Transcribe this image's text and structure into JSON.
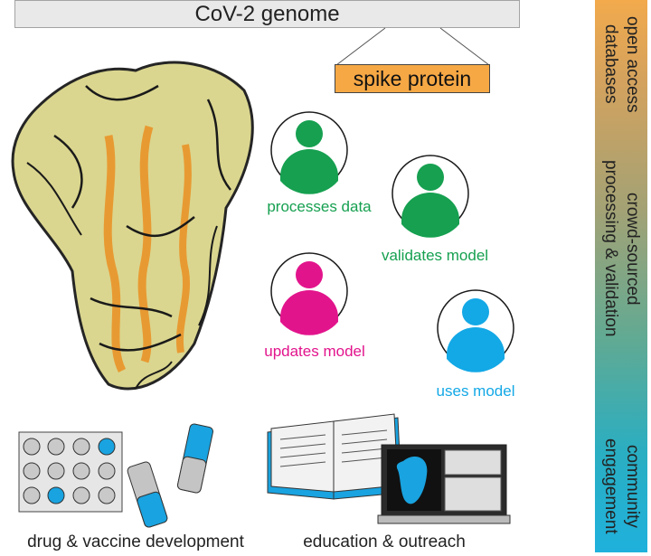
{
  "header": {
    "genome_label": "CoV-2 genome",
    "protein_label": "spike protein"
  },
  "people": [
    {
      "role": "processes data",
      "color": "#16a050"
    },
    {
      "role": "validates model",
      "color": "#16a050"
    },
    {
      "role": "updates model",
      "color": "#e2148c"
    },
    {
      "role": "uses model",
      "color": "#13a8e6"
    }
  ],
  "applications": {
    "drug_label": "drug & vaccine development",
    "education_label": "education & outreach"
  },
  "side_stages": {
    "stage1": "open access\ndatabases",
    "stage2": "crowd-sourced\nprocessing & validation",
    "stage3": "community\nengagement"
  },
  "colors": {
    "highlight_blue": "#19a3e0",
    "protein_orange": "#e89a32",
    "protein_yellow": "#d9d48a"
  }
}
